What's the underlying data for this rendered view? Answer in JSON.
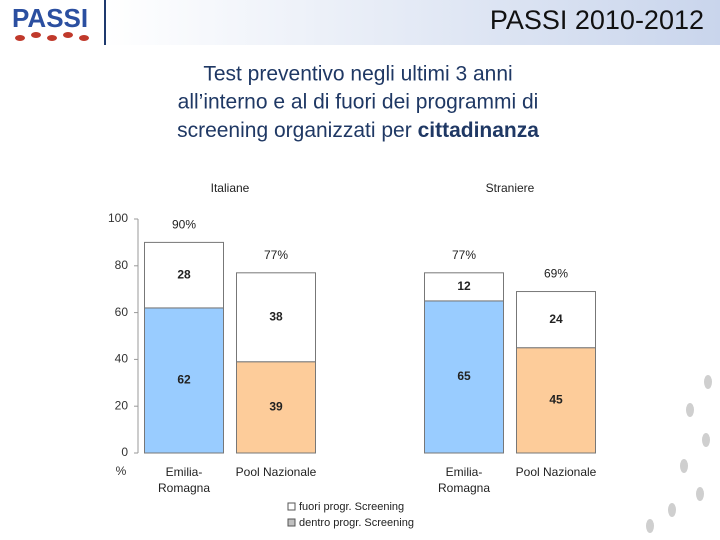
{
  "header": {
    "logo": "PASSI",
    "title": "PASSI 2010-2012"
  },
  "subtitle": {
    "lines": [
      "Test preventivo negli ultimi 3 anni",
      "all’interno e al di fuori dei programmi di",
      "screening organizzati per"
    ],
    "emphasis": "cittadinanza"
  },
  "y_unit": "%",
  "chart_data": [
    {
      "type": "bar",
      "stacked": true,
      "title": "Italiane",
      "categories": [
        "Emilia-Romagna",
        "Pool Nazionale"
      ],
      "series": [
        {
          "name": "dentro progr. Screening",
          "color": "#c0c0c0",
          "bar_colors": [
            "#99ccff",
            "#fdcc9a"
          ],
          "values": [
            62,
            39
          ]
        },
        {
          "name": "fuori progr. Screening",
          "color": "#ffffff",
          "bar_colors": [
            "#ffffff",
            "#ffffff"
          ],
          "values": [
            28,
            38
          ]
        }
      ],
      "totals": [
        90,
        77
      ],
      "total_labels": [
        "90%",
        "77%"
      ],
      "ylim": [
        0,
        100
      ],
      "yticks": [
        0,
        20,
        40,
        60,
        80,
        100
      ]
    },
    {
      "type": "bar",
      "stacked": true,
      "title": "Straniere",
      "categories": [
        "Emilia-Romagna",
        "Pool Nazionale"
      ],
      "series": [
        {
          "name": "dentro progr. Screening",
          "color": "#c0c0c0",
          "bar_colors": [
            "#99ccff",
            "#fdcc9a"
          ],
          "values": [
            65,
            45
          ]
        },
        {
          "name": "fuori progr. Screening",
          "color": "#ffffff",
          "bar_colors": [
            "#ffffff",
            "#ffffff"
          ],
          "values": [
            12,
            24
          ]
        }
      ],
      "totals": [
        77,
        69
      ],
      "total_labels": [
        "77%",
        "69%"
      ],
      "ylim": [
        0,
        100
      ]
    }
  ]
}
